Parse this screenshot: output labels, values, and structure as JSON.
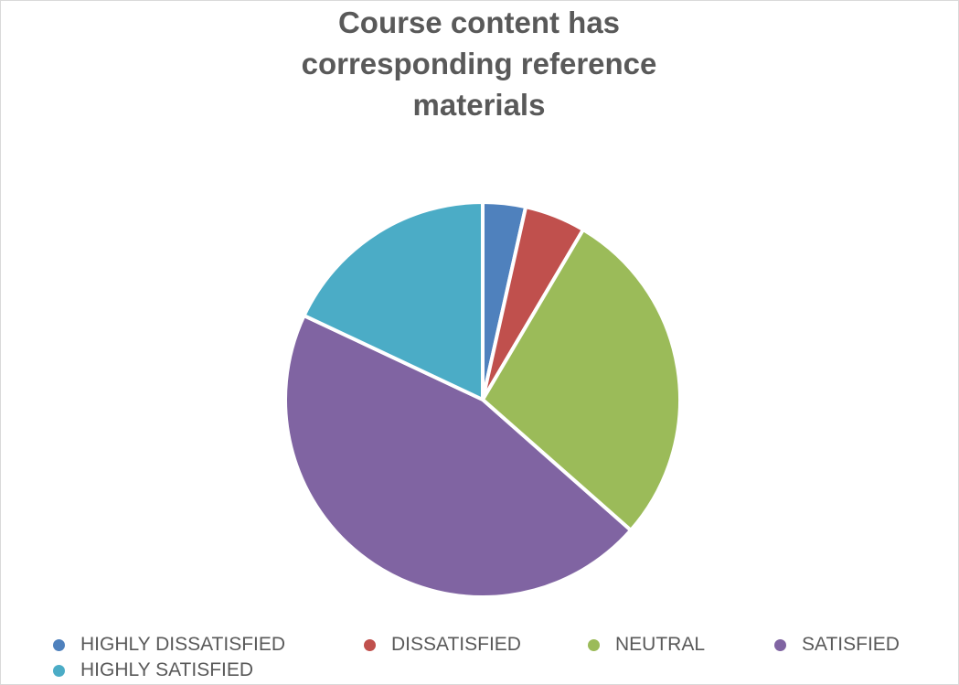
{
  "chart_data": {
    "type": "pie",
    "title": "Course content has corresponding reference materials",
    "categories": [
      "HIGHLY DISSATISFIED",
      "DISSATISFIED",
      "NEUTRAL",
      "SATISFIED",
      "HIGHLY SATISFIED"
    ],
    "values": [
      3.5,
      5,
      28,
      45.5,
      18
    ],
    "colors": [
      "#4F81BD",
      "#C0504D",
      "#9BBB59",
      "#8064A2",
      "#4BACC6"
    ],
    "legend_position": "bottom",
    "data_labels": false
  }
}
